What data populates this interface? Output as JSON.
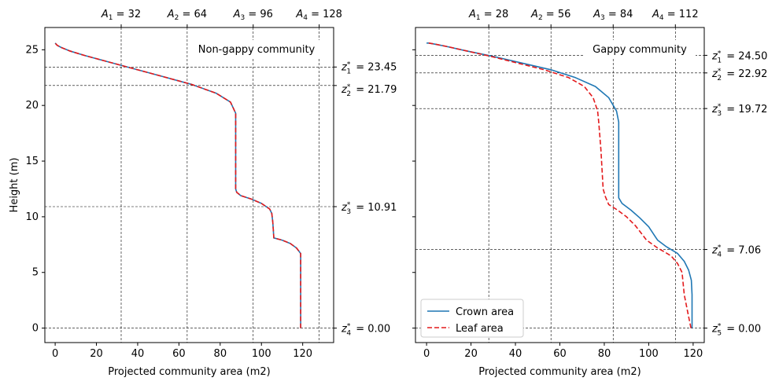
{
  "chart_data": [
    {
      "type": "line",
      "title": "Non-gappy community",
      "xlabel": "Projected community area (m2)",
      "ylabel": "Height (m)",
      "xlim": [
        -5,
        135
      ],
      "ylim": [
        -1.3,
        27
      ],
      "xticks": [
        0,
        20,
        40,
        60,
        80,
        100,
        120
      ],
      "yticks": [
        0,
        5,
        10,
        15,
        20,
        25
      ],
      "top_ticks": [
        {
          "value": 32,
          "sym": "A",
          "sub": "1",
          "text": "32"
        },
        {
          "value": 64,
          "sym": "A",
          "sub": "2",
          "text": "64"
        },
        {
          "value": 96,
          "sym": "A",
          "sub": "3",
          "text": "96"
        },
        {
          "value": 128,
          "sym": "A",
          "sub": "4",
          "text": "128"
        }
      ],
      "right_ticks": [
        {
          "value": 23.45,
          "sub": "1",
          "text": "23.45"
        },
        {
          "value": 21.79,
          "sub": "2",
          "text": "21.79"
        },
        {
          "value": 10.91,
          "sub": "3",
          "text": "10.91"
        },
        {
          "value": 0.0,
          "sub": "4",
          "text": "0.00"
        }
      ],
      "grid": "dashed lines at top and right tick values",
      "series": [
        {
          "name": "Crown area",
          "color": "#1f77b4",
          "style": "solid",
          "x": [
            119,
            119,
            119,
            117,
            114,
            110,
            106,
            105.5,
            105,
            104,
            100,
            95,
            90,
            88,
            87.5,
            87.5,
            87.5,
            85,
            78,
            66,
            50,
            36,
            24,
            14,
            7,
            3,
            1,
            0
          ],
          "y": [
            0,
            5,
            6.7,
            7.2,
            7.6,
            7.9,
            8.1,
            9.5,
            10.3,
            10.7,
            11.2,
            11.6,
            11.9,
            12.2,
            12.5,
            15,
            19.3,
            20.3,
            21.1,
            21.9,
            22.7,
            23.4,
            24,
            24.5,
            24.9,
            25.2,
            25.4,
            25.6
          ]
        },
        {
          "name": "Leaf area",
          "color": "#e31a1c",
          "style": "dashed",
          "x": [
            119,
            119,
            119,
            117,
            114,
            110,
            106,
            105.5,
            105,
            104,
            100,
            95,
            90,
            88,
            87.5,
            87.5,
            87.5,
            85,
            78,
            66,
            50,
            36,
            24,
            14,
            7,
            3,
            1,
            0
          ],
          "y": [
            0,
            5,
            6.7,
            7.2,
            7.6,
            7.9,
            8.1,
            9.5,
            10.3,
            10.7,
            11.2,
            11.6,
            11.9,
            12.2,
            12.5,
            15,
            19.3,
            20.3,
            21.1,
            21.9,
            22.7,
            23.4,
            24,
            24.5,
            24.9,
            25.2,
            25.4,
            25.6
          ]
        }
      ]
    },
    {
      "type": "line",
      "title": "Gappy community",
      "xlabel": "Projected community area (m2)",
      "ylabel": "",
      "xlim": [
        -5,
        125
      ],
      "ylim": [
        -1.3,
        27
      ],
      "xticks": [
        0,
        20,
        40,
        60,
        80,
        100,
        120
      ],
      "yticks": [
        0,
        5,
        10,
        15,
        20,
        25
      ],
      "show_y_ticklabels": false,
      "top_ticks": [
        {
          "value": 28,
          "sym": "A",
          "sub": "1",
          "text": "28"
        },
        {
          "value": 56,
          "sym": "A",
          "sub": "2",
          "text": "56"
        },
        {
          "value": 84,
          "sym": "A",
          "sub": "3",
          "text": "84"
        },
        {
          "value": 112,
          "sym": "A",
          "sub": "4",
          "text": "112"
        }
      ],
      "right_ticks": [
        {
          "value": 24.5,
          "sub": "1",
          "text": "24.50"
        },
        {
          "value": 22.92,
          "sub": "2",
          "text": "22.92"
        },
        {
          "value": 19.72,
          "sub": "3",
          "text": "19.72"
        },
        {
          "value": 7.06,
          "sub": "4",
          "text": "7.06"
        },
        {
          "value": 0.0,
          "sub": "5",
          "text": "0.00"
        }
      ],
      "grid": "dashed lines at top and right tick values",
      "legend_position": "lower-left",
      "series": [
        {
          "name": "Crown area",
          "color": "#1f77b4",
          "style": "solid",
          "x": [
            119.5,
            119.5,
            119.2,
            118,
            116,
            113,
            108,
            104,
            103,
            100,
            96,
            92,
            88,
            86.5,
            86.5,
            86.5,
            86.5,
            85.5,
            82,
            76,
            67,
            56,
            43,
            30,
            18,
            9,
            4,
            1,
            0
          ],
          "y": [
            0,
            3,
            4.3,
            5.2,
            6,
            6.7,
            7.3,
            7.9,
            8.2,
            9.1,
            9.9,
            10.6,
            11.2,
            11.7,
            12.5,
            16,
            18.5,
            19.5,
            20.7,
            21.7,
            22.5,
            23.2,
            23.8,
            24.4,
            24.9,
            25.3,
            25.5,
            25.6,
            25.6
          ]
        },
        {
          "name": "Leaf area",
          "color": "#e31a1c",
          "style": "dashed",
          "x": [
            119,
            117.5,
            116,
            115,
            113,
            110,
            104,
            99,
            97.5,
            94,
            90,
            86,
            82,
            80.5,
            79.5,
            78.5,
            77.5,
            77,
            75,
            71,
            64,
            53,
            41,
            29,
            18,
            9,
            4,
            1,
            0
          ],
          "y": [
            0,
            1.5,
            3,
            5,
            5.8,
            6.5,
            7.2,
            7.9,
            8.3,
            9.2,
            10,
            10.6,
            11.1,
            11.8,
            12.5,
            16,
            18.5,
            19.5,
            20.7,
            21.7,
            22.5,
            23.2,
            23.8,
            24.4,
            24.9,
            25.3,
            25.5,
            25.6,
            25.6
          ]
        }
      ]
    }
  ],
  "legend": [
    {
      "label": "Crown area",
      "color": "#1f77b4",
      "style": "solid"
    },
    {
      "label": "Leaf area",
      "color": "#e31a1c",
      "style": "dashed"
    }
  ]
}
